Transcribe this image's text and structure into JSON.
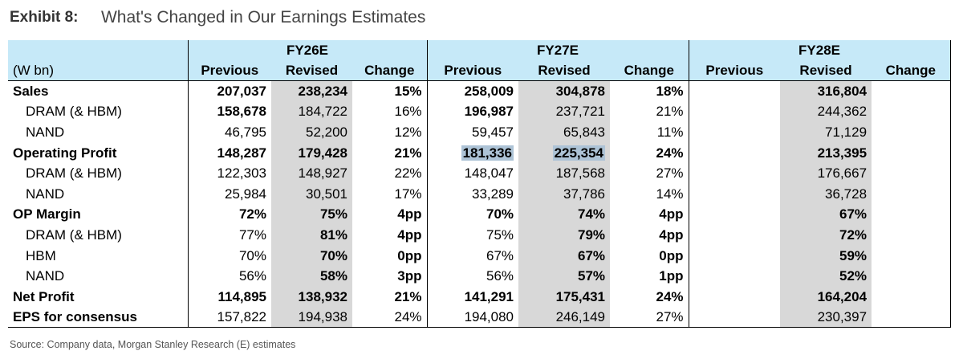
{
  "header": {
    "exhibit_label": "Exhibit 8:",
    "title": "What's Changed in Our Earnings Estimates"
  },
  "table": {
    "unit_label": "(W bn)",
    "years": [
      "FY26E",
      "FY27E",
      "FY28E"
    ],
    "subheaders": [
      "Previous",
      "Revised",
      "Change"
    ],
    "rows": [
      {
        "label": "Sales",
        "values": [
          "207,037",
          "238,234",
          "15%",
          "258,009",
          "304,878",
          "18%",
          "",
          "316,804",
          ""
        ]
      },
      {
        "label": "DRAM (& HBM)",
        "values": [
          "158,678",
          "184,722",
          "16%",
          "196,987",
          "237,721",
          "21%",
          "",
          "244,362",
          ""
        ]
      },
      {
        "label": "NAND",
        "values": [
          "46,795",
          "52,200",
          "12%",
          "59,457",
          "65,843",
          "11%",
          "",
          "71,129",
          ""
        ]
      },
      {
        "label": "Operating Profit",
        "values": [
          "148,287",
          "179,428",
          "21%",
          "181,336",
          "225,354",
          "24%",
          "",
          "213,395",
          ""
        ]
      },
      {
        "label": "DRAM (& HBM)",
        "values": [
          "122,303",
          "148,927",
          "22%",
          "148,047",
          "187,568",
          "27%",
          "",
          "176,667",
          ""
        ]
      },
      {
        "label": "NAND",
        "values": [
          "25,984",
          "30,501",
          "17%",
          "33,289",
          "37,786",
          "14%",
          "",
          "36,728",
          ""
        ]
      },
      {
        "label": "OP Margin",
        "values": [
          "72%",
          "75%",
          "4pp",
          "70%",
          "74%",
          "4pp",
          "",
          "67%",
          ""
        ]
      },
      {
        "label": "DRAM (& HBM)",
        "values": [
          "77%",
          "81%",
          "4pp",
          "75%",
          "79%",
          "4pp",
          "",
          "72%",
          ""
        ]
      },
      {
        "label": "HBM",
        "values": [
          "70%",
          "70%",
          "0pp",
          "67%",
          "67%",
          "0pp",
          "",
          "59%",
          ""
        ]
      },
      {
        "label": "NAND",
        "values": [
          "56%",
          "58%",
          "3pp",
          "56%",
          "57%",
          "1pp",
          "",
          "52%",
          ""
        ]
      },
      {
        "label": "Net Profit",
        "values": [
          "114,895",
          "138,932",
          "21%",
          "141,291",
          "175,431",
          "24%",
          "",
          "164,204",
          ""
        ]
      },
      {
        "label": "EPS for consensus",
        "values": [
          "157,822",
          "194,938",
          "24%",
          "194,080",
          "246,149",
          "27%",
          "",
          "230,397",
          ""
        ]
      }
    ]
  },
  "footer": {
    "source": "Source: Company data, Morgan Stanley Research (E) estimates"
  }
}
